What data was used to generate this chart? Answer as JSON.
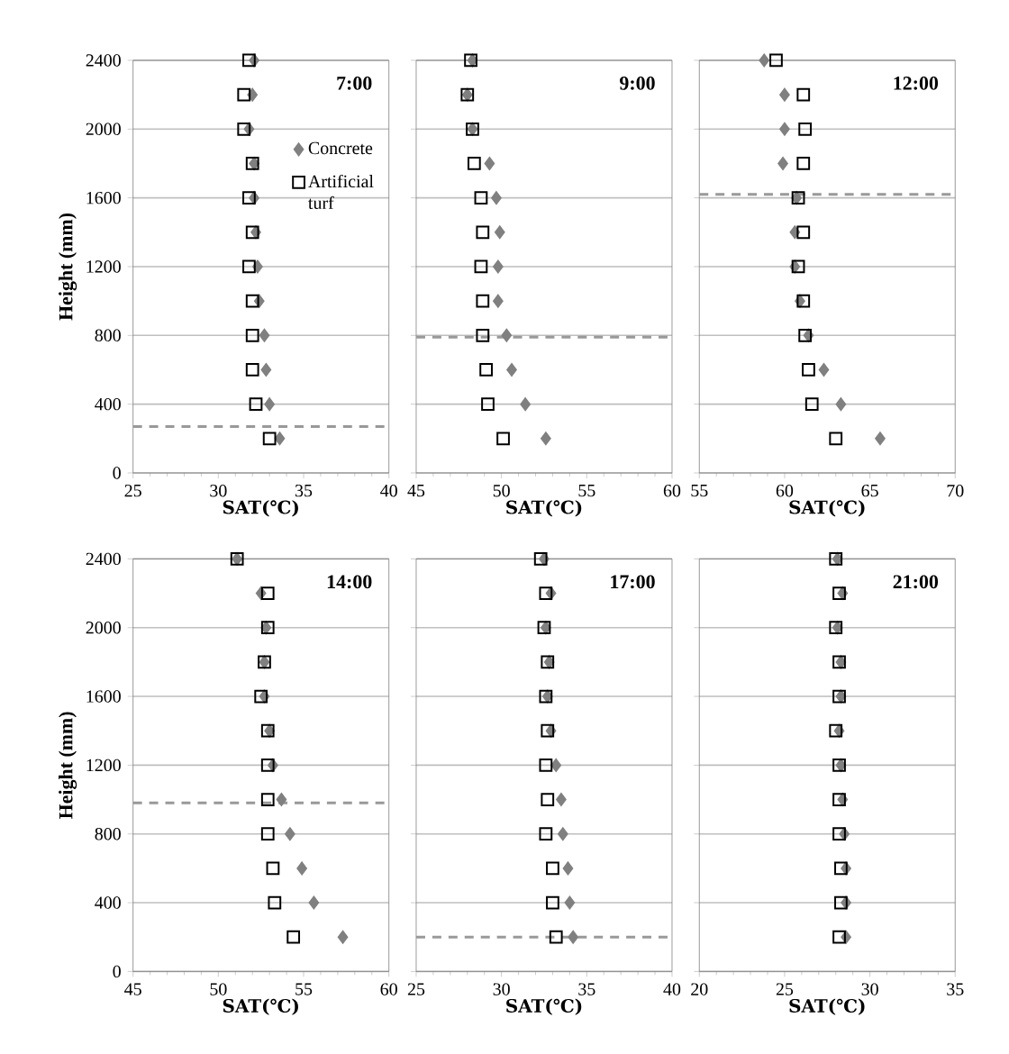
{
  "chart_data": [
    {
      "type": "scatter",
      "title": "7:00",
      "xlabel": "SAT(℃)",
      "ylabel": "Height (mm)",
      "xlim": [
        25,
        40
      ],
      "xticks": [
        25,
        30,
        35,
        40
      ],
      "ylim": [
        0,
        2400
      ],
      "yticks": [
        0,
        400,
        800,
        1200,
        1600,
        2000,
        2400
      ],
      "grid": "y",
      "legend": "right",
      "series": [
        {
          "name": "Concrete",
          "color": "#808080",
          "marker": "diamond",
          "x": [
            33.6,
            33.0,
            32.8,
            32.7,
            32.4,
            32.3,
            32.2,
            32.1,
            32.1,
            31.8,
            32.0,
            32.1
          ],
          "values": [
            200,
            400,
            600,
            800,
            1000,
            1200,
            1400,
            1600,
            1800,
            2000,
            2200,
            2400
          ]
        },
        {
          "name": "Artificial turf",
          "color": "#000000",
          "marker": "square",
          "x": [
            33.0,
            32.2,
            32.0,
            32.0,
            32.0,
            31.8,
            32.0,
            31.8,
            32.0,
            31.5,
            31.5,
            31.8
          ],
          "values": [
            200,
            400,
            600,
            800,
            1000,
            1200,
            1400,
            1600,
            1800,
            2000,
            2200,
            2400
          ]
        }
      ],
      "ref_lines": [
        {
          "axis": "y",
          "value": 270,
          "color": "#999999",
          "line_style": "dashed"
        }
      ]
    },
    {
      "type": "scatter",
      "title": "9:00",
      "xlabel": "SAT(℃)",
      "xlim": [
        45,
        60
      ],
      "xticks": [
        45,
        50,
        55,
        60
      ],
      "ylim": [
        0,
        2400
      ],
      "yticks": [
        0,
        400,
        800,
        1200,
        1600,
        2000,
        2400
      ],
      "grid": "y",
      "tick_labels": "x",
      "series": [
        {
          "color": "#808080",
          "marker": "diamond",
          "x": [
            52.6,
            51.4,
            50.6,
            50.3,
            49.8,
            49.8,
            49.9,
            49.7,
            49.3,
            48.3,
            48.0,
            48.3
          ],
          "values": [
            200,
            400,
            600,
            800,
            1000,
            1200,
            1400,
            1600,
            1800,
            2000,
            2200,
            2400
          ]
        },
        {
          "color": "#000000",
          "marker": "square",
          "x": [
            50.1,
            49.2,
            49.1,
            48.9,
            48.9,
            48.8,
            48.9,
            48.8,
            48.4,
            48.3,
            48.0,
            48.2
          ],
          "values": [
            200,
            400,
            600,
            800,
            1000,
            1200,
            1400,
            1600,
            1800,
            2000,
            2200,
            2400
          ]
        }
      ],
      "ref_lines": [
        {
          "axis": "y",
          "value": 790,
          "color": "#999999",
          "line_style": "dashed"
        }
      ]
    },
    {
      "type": "scatter",
      "title": "12:00",
      "xlabel": "SAT(℃)",
      "xlim": [
        55,
        70
      ],
      "xticks": [
        55,
        60,
        65,
        70
      ],
      "ylim": [
        0,
        2400
      ],
      "yticks": [
        0,
        400,
        800,
        1200,
        1600,
        2000,
        2400
      ],
      "grid": "y",
      "tick_labels": "x",
      "series": [
        {
          "color": "#808080",
          "marker": "diamond",
          "x": [
            65.6,
            63.3,
            62.3,
            61.4,
            60.9,
            60.6,
            60.6,
            60.7,
            59.9,
            60.0,
            60.0,
            58.8
          ],
          "values": [
            200,
            400,
            600,
            800,
            1000,
            1200,
            1400,
            1600,
            1800,
            2000,
            2200,
            2400
          ]
        },
        {
          "color": "#000000",
          "marker": "square",
          "x": [
            63.0,
            61.6,
            61.4,
            61.2,
            61.1,
            60.8,
            61.1,
            60.8,
            61.1,
            61.2,
            61.1,
            59.5
          ],
          "values": [
            200,
            400,
            600,
            800,
            1000,
            1200,
            1400,
            1600,
            1800,
            2000,
            2200,
            2400
          ]
        }
      ],
      "ref_lines": [
        {
          "axis": "y",
          "value": 1620,
          "color": "#999999",
          "line_style": "dashed"
        }
      ]
    },
    {
      "type": "scatter",
      "title": "14:00",
      "xlabel": "SAT(℃)",
      "ylabel": "Height (mm)",
      "xlim": [
        45,
        60
      ],
      "xticks": [
        45,
        50,
        55,
        60
      ],
      "ylim": [
        0,
        2400
      ],
      "yticks": [
        0,
        400,
        800,
        1200,
        1600,
        2000,
        2400
      ],
      "grid": "y",
      "series": [
        {
          "color": "#808080",
          "marker": "diamond",
          "x": [
            57.3,
            55.6,
            54.9,
            54.2,
            53.7,
            53.2,
            53.0,
            52.7,
            52.7,
            52.8,
            52.5,
            51.1
          ],
          "values": [
            200,
            400,
            600,
            800,
            1000,
            1200,
            1400,
            1600,
            1800,
            2000,
            2200,
            2400
          ]
        },
        {
          "color": "#000000",
          "marker": "square",
          "x": [
            54.4,
            53.3,
            53.2,
            52.9,
            52.9,
            52.9,
            52.9,
            52.5,
            52.7,
            52.9,
            52.9,
            51.1
          ],
          "values": [
            200,
            400,
            600,
            800,
            1000,
            1200,
            1400,
            1600,
            1800,
            2000,
            2200,
            2400
          ]
        }
      ],
      "ref_lines": [
        {
          "axis": "y",
          "value": 980,
          "color": "#999999",
          "line_style": "dashed"
        }
      ]
    },
    {
      "type": "scatter",
      "title": "17:00",
      "xlabel": "SAT(℃)",
      "xlim": [
        25,
        40
      ],
      "xticks": [
        25,
        30,
        35,
        40
      ],
      "ylim": [
        0,
        2400
      ],
      "yticks": [
        0,
        400,
        800,
        1200,
        1600,
        2000,
        2400
      ],
      "grid": "y",
      "tick_labels": "x",
      "series": [
        {
          "color": "#808080",
          "marker": "diamond",
          "x": [
            34.2,
            34.0,
            33.9,
            33.6,
            33.5,
            33.2,
            32.9,
            32.7,
            32.8,
            32.6,
            32.9,
            32.5
          ],
          "values": [
            200,
            400,
            600,
            800,
            1000,
            1200,
            1400,
            1600,
            1800,
            2000,
            2200,
            2400
          ]
        },
        {
          "color": "#000000",
          "marker": "square",
          "x": [
            33.2,
            33.0,
            33.0,
            32.6,
            32.7,
            32.6,
            32.7,
            32.6,
            32.7,
            32.5,
            32.6,
            32.3
          ],
          "values": [
            200,
            400,
            600,
            800,
            1000,
            1200,
            1400,
            1600,
            1800,
            2000,
            2200,
            2400
          ]
        }
      ],
      "ref_lines": [
        {
          "axis": "y",
          "value": 200,
          "color": "#999999",
          "line_style": "dashed"
        }
      ]
    },
    {
      "type": "scatter",
      "title": "21:00",
      "xlabel": "SAT(℃)",
      "xlim": [
        20,
        35
      ],
      "xticks": [
        20,
        25,
        30,
        35
      ],
      "ylim": [
        0,
        2400
      ],
      "yticks": [
        0,
        400,
        800,
        1200,
        1600,
        2000,
        2400
      ],
      "grid": "y",
      "tick_labels": "x",
      "series": [
        {
          "color": "#808080",
          "marker": "diamond",
          "x": [
            28.6,
            28.6,
            28.6,
            28.5,
            28.4,
            28.3,
            28.2,
            28.3,
            28.3,
            28.1,
            28.4,
            28.1
          ],
          "values": [
            200,
            400,
            600,
            800,
            1000,
            1200,
            1400,
            1600,
            1800,
            2000,
            2200,
            2400
          ]
        },
        {
          "color": "#000000",
          "marker": "square",
          "x": [
            28.2,
            28.3,
            28.3,
            28.2,
            28.2,
            28.2,
            28.0,
            28.2,
            28.2,
            28.0,
            28.2,
            28.0
          ],
          "values": [
            200,
            400,
            600,
            800,
            1000,
            1200,
            1400,
            1600,
            1800,
            2000,
            2200,
            2400
          ]
        }
      ]
    }
  ]
}
